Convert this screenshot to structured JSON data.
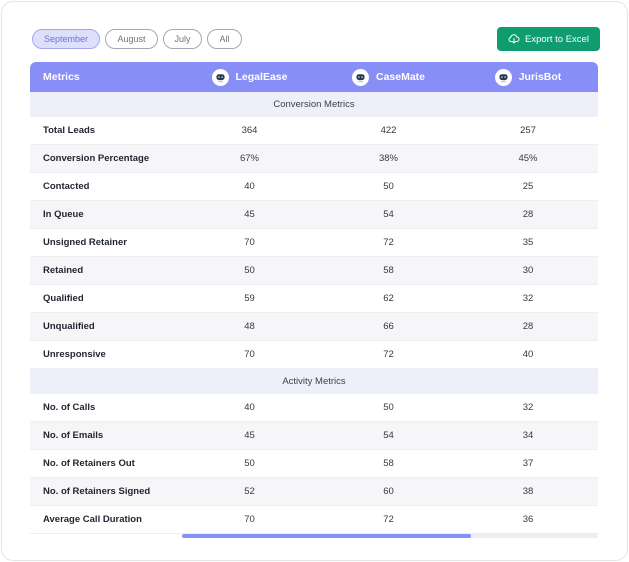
{
  "filters": [
    {
      "label": "September",
      "active": true
    },
    {
      "label": "August",
      "active": false
    },
    {
      "label": "July",
      "active": false
    },
    {
      "label": "All",
      "active": false
    }
  ],
  "export": {
    "label": "Export to Excel",
    "icon": "cloud-download-icon"
  },
  "table": {
    "header": {
      "metrics_label": "Metrics",
      "agents": [
        "LegalEase",
        "CaseMate",
        "JurisBot"
      ]
    },
    "sections": [
      {
        "title": "Conversion Metrics",
        "rows": [
          {
            "label": "Total Leads",
            "values": [
              "364",
              "422",
              "257"
            ]
          },
          {
            "label": "Conversion Percentage",
            "values": [
              "67%",
              "38%",
              "45%"
            ]
          },
          {
            "label": "Contacted",
            "values": [
              "40",
              "50",
              "25"
            ]
          },
          {
            "label": "In Queue",
            "values": [
              "45",
              "54",
              "28"
            ]
          },
          {
            "label": "Unsigned Retainer",
            "values": [
              "70",
              "72",
              "35"
            ]
          },
          {
            "label": "Retained",
            "values": [
              "50",
              "58",
              "30"
            ]
          },
          {
            "label": "Qualified",
            "values": [
              "59",
              "62",
              "32"
            ]
          },
          {
            "label": "Unqualified",
            "values": [
              "48",
              "66",
              "28"
            ]
          },
          {
            "label": "Unresponsive",
            "values": [
              "70",
              "72",
              "40"
            ]
          }
        ]
      },
      {
        "title": "Activity Metrics",
        "rows": [
          {
            "label": "No. of Calls",
            "values": [
              "40",
              "50",
              "32"
            ]
          },
          {
            "label": "No. of Emails",
            "values": [
              "45",
              "54",
              "34"
            ]
          },
          {
            "label": "No. of Retainers Out",
            "values": [
              "50",
              "58",
              "37"
            ]
          },
          {
            "label": "No. of Retainers Signed",
            "values": [
              "52",
              "60",
              "38"
            ]
          },
          {
            "label": "Average Call Duration",
            "values": [
              "70",
              "72",
              "36"
            ]
          }
        ]
      }
    ]
  },
  "colors": {
    "accent": "#878ef5",
    "export_green": "#0f9d6f",
    "section_bg": "#edf0fb"
  }
}
